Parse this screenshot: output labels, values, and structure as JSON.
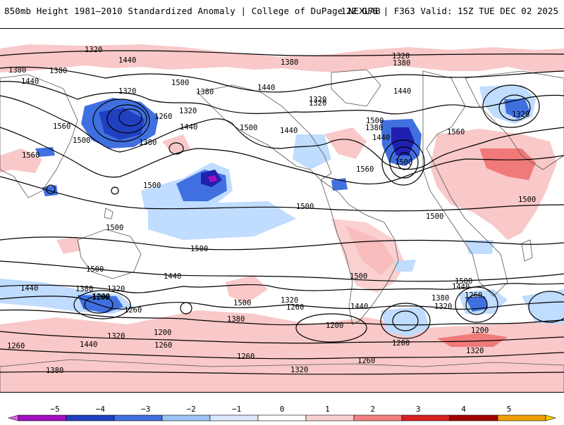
{
  "header": {
    "left_title": "850mb Height 1981–2010 Standardized Anomaly | College of DuPage NEXLAB",
    "right_title": "12Z GFS | F363 Valid: 15Z TUE DEC 02 2025"
  },
  "map": {
    "type": "global 850mb height contours with standardized anomaly shading",
    "contour_labels": [
      "1320",
      "1440",
      "1380",
      "1380",
      "1440",
      "1500",
      "1320",
      "1380",
      "1440",
      "1320",
      "1260",
      "1320",
      "1560",
      "1500",
      "1380",
      "1440",
      "1500",
      "1380",
      "1320",
      "1560",
      "1440",
      "1380",
      "1500",
      "1380",
      "1440",
      "1320",
      "1440",
      "1560",
      "1500",
      "1560",
      "1500",
      "1500",
      "1500",
      "1500",
      "1500",
      "1500",
      "1500",
      "1500",
      "1440",
      "1500",
      "1440",
      "1380",
      "1320",
      "1200",
      "1260",
      "1500",
      "1440",
      "1320",
      "1260",
      "1380",
      "1200",
      "1200",
      "1440",
      "1380",
      "1320",
      "1260",
      "1200",
      "1260",
      "1320",
      "1440",
      "1260",
      "1380",
      "1320",
      "1260",
      "1260",
      "1320",
      "1200",
      "1200",
      "1320"
    ],
    "colors": {
      "land_outline": "#666666",
      "contour": "#000000",
      "anom_neg5": "#e060e0",
      "anom_neg4": "#a010c0",
      "anom_neg3": "#2020b0",
      "anom_neg2": "#4070e0",
      "anom_neg1": "#c0dcff",
      "anom_pos1": "#f9c8c8",
      "anom_pos2": "#f07a7a",
      "anom_pos3": "#d02020",
      "anom_pos4": "#a00000",
      "anom_pos5": "#f8a000"
    }
  },
  "colorbar": {
    "ticks": [
      "−5",
      "−4",
      "−3",
      "−2",
      "−1",
      "0",
      "1",
      "2",
      "3",
      "4",
      "5"
    ],
    "colors": [
      "#e060e0",
      "#a010c0",
      "#2040c0",
      "#4070e0",
      "#9cc4f4",
      "#dce8ff",
      "#ffffff",
      "#fad0d0",
      "#f28080",
      "#d82020",
      "#a00000",
      "#f0a000",
      "#f8d000"
    ]
  }
}
